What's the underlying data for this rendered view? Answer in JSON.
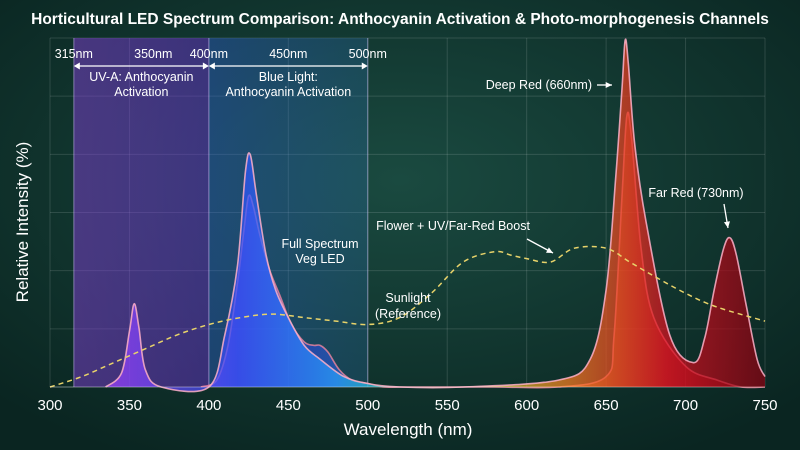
{
  "chart_data": {
    "type": "area",
    "title": "Horticultural LED Spectrum Comparison: Anthocyanin Activation & Photo-morphogenesis Channels",
    "xlabel": "Wavelength (nm)",
    "ylabel": "Relative Intensity (%)",
    "xlim": [
      300,
      750
    ],
    "ylim": [
      0,
      100
    ],
    "x_ticks": [
      300,
      350,
      400,
      450,
      500,
      550,
      600,
      650,
      700,
      750
    ],
    "grid": true,
    "colors": {
      "background": "#0d2e28",
      "uv_band": "#7a3bd6",
      "blue_band": "#2f6fd8",
      "sunlight": "#e8d36a",
      "deep_red": "#c8102e",
      "far_red": "#9a0f1e",
      "uv_curve": "#c06cf0",
      "blue_curve": "#5aa8ff"
    },
    "bands": [
      {
        "name": "uv-a",
        "from": 315,
        "to": 400,
        "top_ticks": [
          "315nm",
          "350nm",
          "400nm"
        ],
        "label_lines": [
          "UV-A: Anthocyanin",
          "Activation"
        ]
      },
      {
        "name": "blue",
        "from": 400,
        "to": 500,
        "top_ticks": [
          "450nm",
          "500nm"
        ],
        "label_lines": [
          "Blue Light:",
          "Anthocyanin Activation"
        ]
      }
    ],
    "series": [
      {
        "name": "Sunlight (Reference)",
        "style": "dashed",
        "x": [
          300,
          320,
          340,
          360,
          380,
          400,
          420,
          440,
          460,
          480,
          500,
          520,
          540,
          560,
          580,
          590,
          600,
          615,
          630,
          650,
          665,
          680,
          700,
          720,
          750
        ],
        "y": [
          0,
          3,
          7,
          11,
          15,
          18,
          20,
          21,
          20,
          19,
          18,
          20,
          27,
          36,
          39,
          38,
          37,
          36,
          40,
          40,
          36,
          32,
          27,
          23,
          19
        ]
      },
      {
        "name": "Full Spectrum Veg LED",
        "style": "filled",
        "x": [
          395,
          405,
          412,
          418,
          422,
          425,
          428,
          432,
          438,
          445,
          452,
          460,
          466,
          470,
          475,
          482,
          490,
          500,
          510,
          520,
          540,
          580,
          620,
          650,
          655,
          660,
          663,
          666,
          672,
          680,
          700,
          720,
          735,
          750
        ],
        "y": [
          0,
          2,
          12,
          30,
          45,
          55,
          52,
          44,
          34,
          26,
          18,
          13,
          12,
          12,
          10,
          5,
          2,
          1,
          0,
          0,
          0,
          0,
          0,
          3,
          15,
          55,
          78,
          72,
          40,
          20,
          6,
          2,
          0,
          0
        ]
      },
      {
        "name": "Flower + UV/Far-Red Boost",
        "style": "filled",
        "x": [
          335,
          345,
          350,
          353,
          356,
          360,
          370,
          400,
          410,
          418,
          423,
          426,
          430,
          436,
          442,
          450,
          460,
          470,
          485,
          500,
          520,
          560,
          620,
          640,
          650,
          656,
          660,
          662,
          664,
          668,
          675,
          690,
          705,
          712,
          718,
          724,
          728,
          732,
          738,
          745,
          750
        ],
        "y": [
          0,
          4,
          16,
          24,
          17,
          5,
          0,
          0,
          15,
          35,
          62,
          67,
          55,
          38,
          28,
          20,
          12,
          8,
          3,
          1,
          0,
          0,
          2,
          8,
          28,
          60,
          86,
          100,
          93,
          70,
          48,
          15,
          7,
          14,
          28,
          40,
          43,
          38,
          24,
          8,
          3
        ]
      }
    ],
    "annotations": [
      {
        "text": "Deep Red (660nm)",
        "x": 660,
        "y": 87
      },
      {
        "text": "Far Red (730nm)",
        "x": 729,
        "y": 43
      },
      {
        "text": "Flower + UV/Far-Red Boost",
        "x": 620,
        "y": 36
      },
      {
        "text": "Full Spectrum",
        "x": 472,
        "y": 42
      },
      {
        "text": "Veg LED",
        "x": 472,
        "y": 37
      },
      {
        "text": "Sunlight",
        "x": 570,
        "y": 24
      },
      {
        "text": "(Reference)",
        "x": 570,
        "y": 19
      }
    ]
  }
}
